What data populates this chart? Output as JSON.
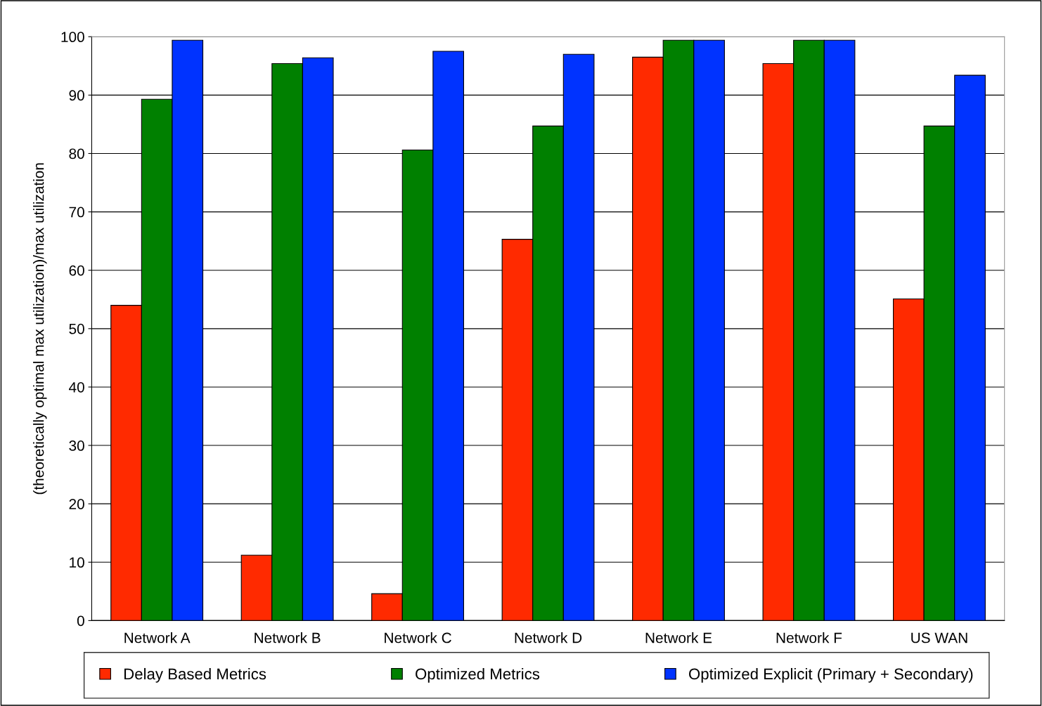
{
  "chart_data": {
    "type": "bar",
    "ylabel": "(theoretically optimal max utilization)/max utilization",
    "categories": [
      "Network A",
      "Network B",
      "Network C",
      "Network D",
      "Network E",
      "Network F",
      "US WAN"
    ],
    "series": [
      {
        "name": "Delay Based Metrics",
        "color": "#ff2a00",
        "values": [
          54.0,
          11.2,
          4.6,
          65.3,
          96.5,
          95.4,
          55.1
        ]
      },
      {
        "name": "Optimized Metrics",
        "color": "#008000",
        "values": [
          89.3,
          95.4,
          80.6,
          84.7,
          99.4,
          99.4,
          84.7
        ]
      },
      {
        "name": "Optimized Explicit (Primary + Secondary)",
        "color": "#0033ff",
        "values": [
          99.4,
          96.4,
          97.5,
          97.0,
          99.4,
          99.4,
          93.4
        ]
      }
    ],
    "ylim": [
      0,
      100
    ],
    "yticks": [
      0,
      10,
      20,
      30,
      40,
      50,
      60,
      70,
      80,
      90,
      100
    ],
    "grid": "y",
    "legend": "bottom"
  }
}
